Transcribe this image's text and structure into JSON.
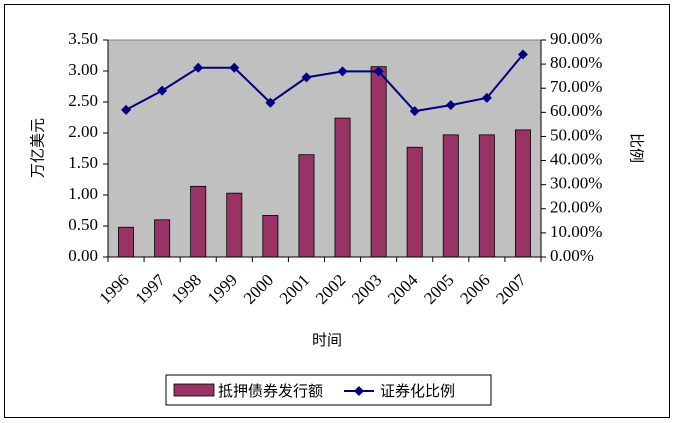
{
  "chart_data": {
    "type": "bar+line",
    "title": "",
    "xlabel": "时间",
    "ylabel_left": "万亿美元",
    "ylabel_right": "比例",
    "categories": [
      "1996",
      "1997",
      "1998",
      "1999",
      "2000",
      "2001",
      "2002",
      "2003",
      "2004",
      "2005",
      "2006",
      "2007"
    ],
    "series": [
      {
        "name": "抵押债券发行额",
        "type": "bar",
        "axis": "left",
        "color": "#993366",
        "values": [
          0.48,
          0.6,
          1.14,
          1.03,
          0.67,
          1.65,
          2.24,
          3.07,
          1.77,
          1.97,
          1.97,
          2.05
        ]
      },
      {
        "name": "证券化比例",
        "type": "line",
        "axis": "right",
        "color": "#000080",
        "values": [
          0.61,
          0.69,
          0.785,
          0.785,
          0.64,
          0.745,
          0.77,
          0.77,
          0.605,
          0.63,
          0.66,
          0.84
        ]
      }
    ],
    "ylim_left": [
      0,
      3.5
    ],
    "yticks_left": [
      "0.00",
      "0.50",
      "1.00",
      "1.50",
      "2.00",
      "2.50",
      "3.00",
      "3.50"
    ],
    "ylim_right": [
      0,
      0.9
    ],
    "yticks_right": [
      "0.00%",
      "10.00%",
      "20.00%",
      "30.00%",
      "40.00%",
      "50.00%",
      "60.00%",
      "70.00%",
      "80.00%",
      "90.00%"
    ],
    "plot_background": "#c0c0c0",
    "grid": false,
    "legend_position": "bottom"
  }
}
